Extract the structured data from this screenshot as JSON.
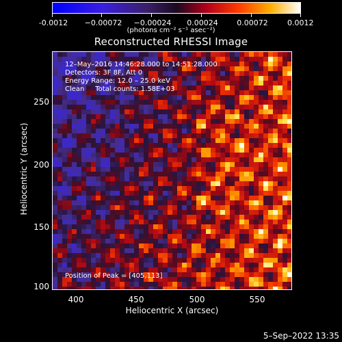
{
  "colorbar": {
    "tick_labels": [
      "-0.0012",
      "−0.00072",
      "−0.00024",
      "0.00024",
      "0.00072",
      "0.0012"
    ],
    "units": "(photons cm⁻² s⁻¹ asec⁻²)",
    "range": [
      -0.0012,
      0.0012
    ]
  },
  "title": "Reconstructed RHESSI Image",
  "annotations": {
    "time_range": "12–May–2016 14:46:28.000 to 14:51:28.000",
    "detectors": "Detectors: 3F 8F, Att 0",
    "energy": "Energy Range: 12.0 – 25.0 keV",
    "clean": "Clean     Total counts: 1.58E+03",
    "peak": "Position of Peak = [405,113]"
  },
  "axes": {
    "xlabel": "Heliocentric X (arcsec)",
    "ylabel": "Heliocentric Y (arcsec)",
    "xticks": [
      "400",
      "450",
      "500",
      "550"
    ],
    "yticks": [
      "250",
      "200",
      "150",
      "100"
    ],
    "xlim": [
      381,
      575
    ],
    "ylim": [
      100,
      290
    ]
  },
  "footer": {
    "date": "5–Sep–2022 13:35"
  },
  "colors": {
    "background": "#000000",
    "text": "#ffffff"
  }
}
